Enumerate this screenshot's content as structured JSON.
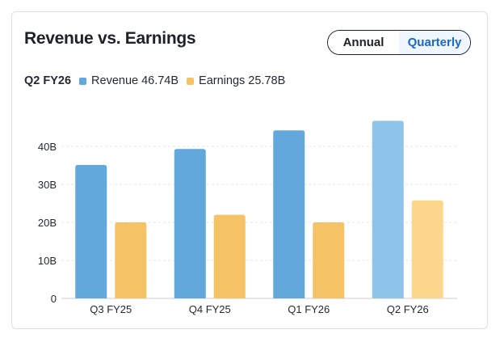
{
  "header": {
    "title": "Revenue vs. Earnings",
    "toggle": {
      "annual": "Annual",
      "quarterly": "Quarterly",
      "selected": "quarterly"
    }
  },
  "legend": {
    "period": "Q2 FY26",
    "revenue_label": "Revenue",
    "revenue_value": "46.74B",
    "earnings_label": "Earnings",
    "earnings_value": "25.78B"
  },
  "colors": {
    "revenue": "#62a8db",
    "earnings": "#f6c266",
    "revenue_highlight": "#8fc4ea",
    "earnings_highlight": "#fdd68e",
    "grid": "#e3e5e8",
    "text": "#232a31"
  },
  "chart_data": {
    "type": "bar",
    "categories": [
      "Q3 FY25",
      "Q4 FY25",
      "Q1 FY26",
      "Q2 FY26"
    ],
    "series": [
      {
        "name": "Revenue",
        "values": [
          35.1,
          39.3,
          44.2,
          46.74
        ]
      },
      {
        "name": "Earnings",
        "values": [
          20.0,
          22.0,
          20.0,
          25.78
        ]
      }
    ],
    "yticks": [
      "0",
      "10B",
      "20B",
      "30B",
      "40B"
    ],
    "ytick_values": [
      0,
      10,
      20,
      30,
      40
    ],
    "ylim": [
      0,
      50
    ],
    "grid": true,
    "highlighted_category": "Q2 FY26"
  }
}
